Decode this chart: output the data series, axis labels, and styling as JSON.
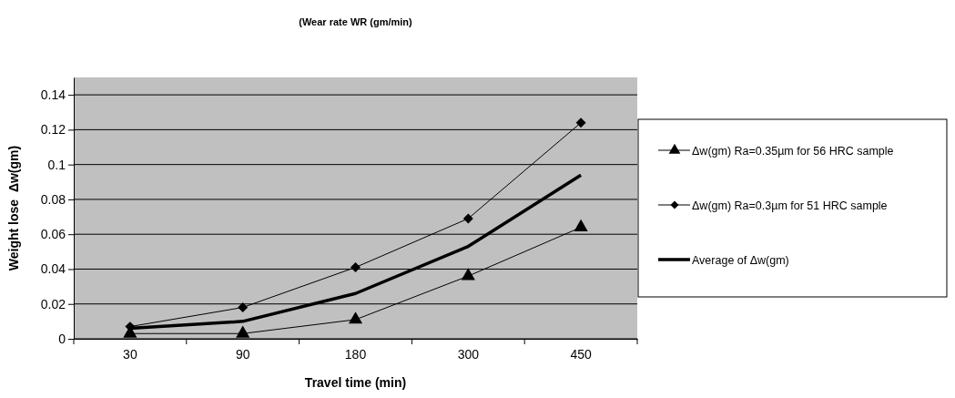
{
  "chart_data": {
    "type": "line",
    "title": "(Wear rate WR (gm/min)",
    "xlabel": "Travel time (min)",
    "ylabel": "Weight lose  Δw(gm)",
    "categories": [
      "30",
      "90",
      "180",
      "300",
      "450"
    ],
    "series": [
      {
        "name": "Δw(gm) Ra=0.35µm for 56 HRC sample",
        "color": "#000000",
        "marker": "triangle",
        "values": [
          0.003,
          0.003,
          0.011,
          0.036,
          0.064
        ]
      },
      {
        "name": "Δw(gm) Ra=0.3µm for 51 HRC sample",
        "color": "#000000",
        "marker": "diamond",
        "values": [
          0.007,
          0.018,
          0.041,
          0.069,
          0.124
        ]
      },
      {
        "name": "Average of Δw(gm)",
        "color": "#000000",
        "marker": "none",
        "values": [
          0.006,
          0.01,
          0.026,
          0.053,
          0.094
        ]
      }
    ],
    "ylim": [
      0,
      0.15
    ],
    "yticks": [
      0,
      0.02,
      0.04,
      0.06,
      0.08,
      0.1,
      0.12,
      0.14
    ],
    "grid": "y",
    "legend": "right",
    "line_style": "solid"
  }
}
